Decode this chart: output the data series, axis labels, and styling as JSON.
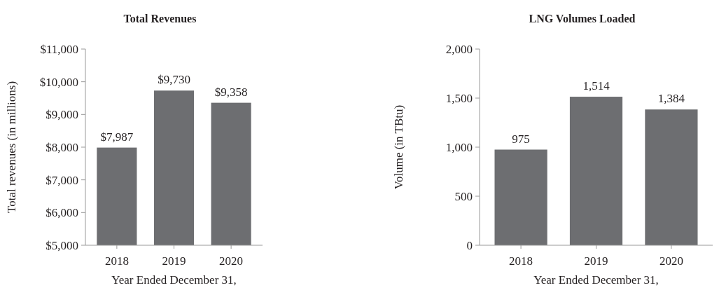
{
  "chart_data": [
    {
      "type": "bar",
      "title": "Total Revenues",
      "xlabel": "Year Ended December 31,",
      "ylabel": "Total revenues (in millions)",
      "categories": [
        "2018",
        "2019",
        "2020"
      ],
      "values": [
        7987,
        9730,
        9358
      ],
      "color": "#6d6e71",
      "ylim": [
        5000,
        11000
      ],
      "yticks": [
        {
          "value": 5000,
          "label": "$5,000"
        },
        {
          "value": 6000,
          "label": "$6,000"
        },
        {
          "value": 7000,
          "label": "$7,000"
        },
        {
          "value": 8000,
          "label": "$8,000"
        },
        {
          "value": 9000,
          "label": "$9,000"
        },
        {
          "value": 10000,
          "label": "$10,000"
        },
        {
          "value": 11000,
          "label": "$11,000"
        }
      ],
      "value_labels": [
        "$7,987",
        "$9,730",
        "$9,358"
      ]
    },
    {
      "type": "bar",
      "title": "LNG Volumes Loaded",
      "xlabel": "Year Ended December 31,",
      "ylabel": "Volume (in TBtu)",
      "categories": [
        "2018",
        "2019",
        "2020"
      ],
      "values": [
        975,
        1514,
        1384
      ],
      "color": "#6d6e71",
      "ylim": [
        0,
        2000
      ],
      "yticks": [
        0,
        500,
        {
          "value": 1000,
          "label": "1,000"
        },
        {
          "value": 1500,
          "label": "1,500"
        },
        {
          "value": 2000,
          "label": "2,000"
        }
      ],
      "value_labels": [
        "975",
        "1,514",
        "1,384"
      ]
    }
  ]
}
